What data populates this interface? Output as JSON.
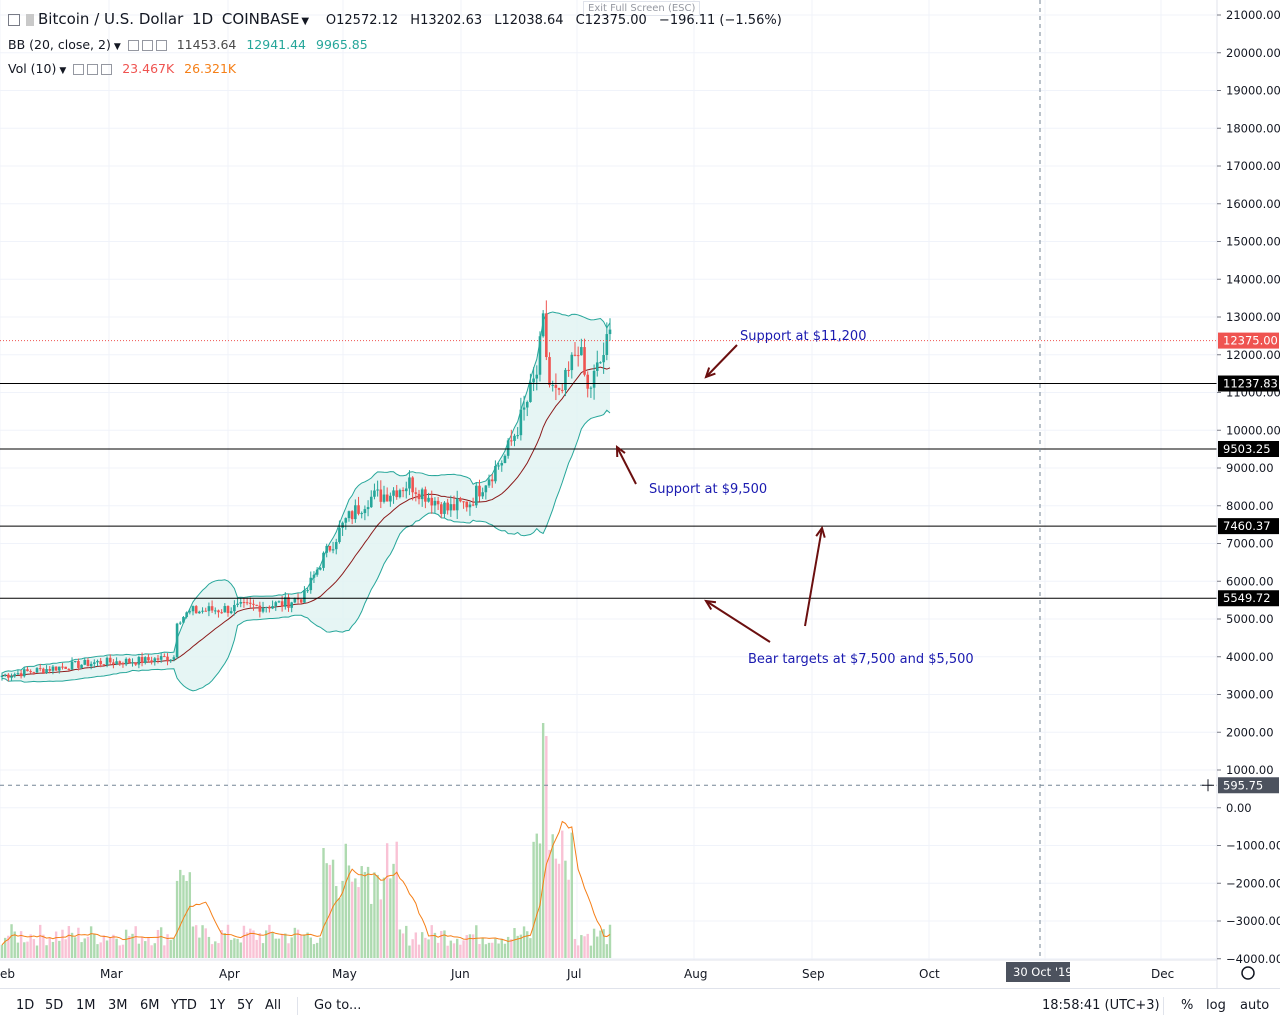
{
  "header": {
    "symbol_title": "Bitcoin / U.S. Dollar",
    "interval": "1D",
    "exchange": "COINBASE",
    "ohlc": [
      {
        "label": "O",
        "value": "12572.12"
      },
      {
        "label": "H",
        "value": "13202.63"
      },
      {
        "label": "L",
        "value": "12038.64"
      },
      {
        "label": "C",
        "value": "12375.00"
      }
    ],
    "change": "−196.11 (−1.56%)",
    "exit_fullscreen": "Exit Full Screen (ESC)"
  },
  "indicators": {
    "bb": {
      "label": "BB (20, close, 2)",
      "values": [
        "11453.64",
        "12941.44",
        "9965.85"
      ]
    },
    "vol": {
      "label": "Vol (10)",
      "values": [
        "23.467K",
        "26.321K"
      ]
    }
  },
  "colors": {
    "up": "#26a69a",
    "down": "#ef5350",
    "bb_band": "#26a69a",
    "bb_fill": "#e0f2f1",
    "bb_mid": "#8b1a1a",
    "annotation": "#1a1ab0",
    "arrow": "#6b0f0f",
    "vol_ma": "#f57f17",
    "current_price": "#ef5350"
  },
  "chart_data": {
    "type": "candlestick",
    "title": "Bitcoin / U.S. Dollar 1D COINBASE",
    "price_axis": {
      "ticks": [
        "21000.00",
        "20000.00",
        "19000.00",
        "18000.00",
        "17000.00",
        "16000.00",
        "15000.00",
        "14000.00",
        "13000.00",
        "12000.00",
        "11000.00",
        "10000.00",
        "9000.00",
        "8000.00",
        "7000.00",
        "6000.00",
        "5000.00",
        "4000.00",
        "3000.00",
        "2000.00",
        "1000.00",
        "0.00",
        "−1000.00",
        "−2000.00",
        "−3000.00",
        "−4000.00"
      ]
    },
    "time_axis": {
      "labels": [
        "eb",
        "Mar",
        "Apr",
        "May",
        "Jun",
        "Jul",
        "Aug",
        "Sep",
        "Oct",
        "Dec"
      ],
      "crosshair_label": "30 Oct '19"
    },
    "price_labels": [
      {
        "text": "12375.00",
        "price": 12375,
        "kind": "current"
      },
      {
        "text": "11237.83",
        "price": 11237.83,
        "kind": "level"
      },
      {
        "text": "9503.25",
        "price": 9503.25,
        "kind": "level"
      },
      {
        "text": "7460.37",
        "price": 7460.37,
        "kind": "level"
      },
      {
        "text": "5549.72",
        "price": 5549.72,
        "kind": "level"
      },
      {
        "text": "595.75",
        "price": 595.75,
        "kind": "crosshair"
      }
    ],
    "horizontal_lines": [
      11237.83,
      9503.25,
      7460.37,
      5549.72
    ],
    "annotations": [
      {
        "text": "Support at $11,200"
      },
      {
        "text": "Support at $9,500"
      },
      {
        "text": "Bear targets at $7,500 and $5,500"
      }
    ],
    "key_points": [
      {
        "label": "current close",
        "value": 12375.0
      },
      {
        "label": "peak high",
        "value": 13900
      }
    ]
  },
  "bottom_bar": {
    "ranges": [
      "1D",
      "5D",
      "1M",
      "3M",
      "6M",
      "YTD",
      "1Y",
      "5Y",
      "All"
    ],
    "goto": "Go to...",
    "time": "18:58:41 (UTC+3)",
    "percent": "%",
    "log": "log",
    "auto": "auto"
  }
}
